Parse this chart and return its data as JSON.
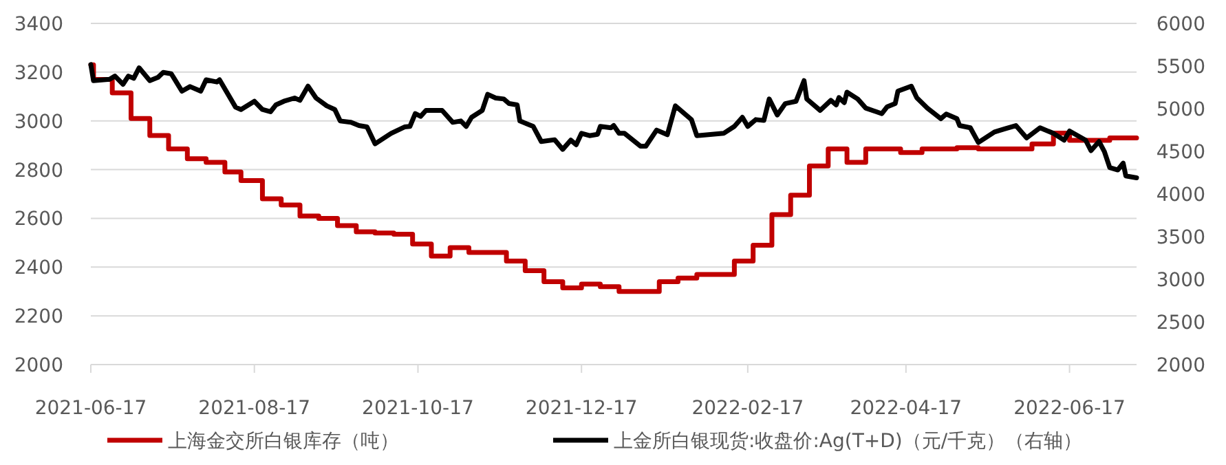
{
  "chart_data": {
    "type": "line",
    "xlim": [
      "2021-06-17",
      "2022-07-12"
    ],
    "xticks": [
      "2021-06-17",
      "2021-08-17",
      "2021-10-17",
      "2021-12-17",
      "2022-02-17",
      "2022-04-17",
      "2022-06-17"
    ],
    "ylim": [
      2000,
      3400
    ],
    "yticks": [
      2000,
      2200,
      2400,
      2600,
      2800,
      3000,
      3200,
      3400
    ],
    "y2lim": [
      2000,
      6000
    ],
    "y2ticks": [
      2000,
      2500,
      3000,
      3500,
      4000,
      4500,
      5000,
      5500,
      6000
    ],
    "grid": "y",
    "legend": "bottom",
    "marker": "none",
    "line_style": "solid",
    "series": [
      {
        "name": "上海金交所白银库存（吨）",
        "type": "step",
        "color": "#c00000",
        "x": [
          "2021-06-17",
          "2021-06-18",
          "2021-06-25",
          "2021-07-02",
          "2021-07-09",
          "2021-07-16",
          "2021-07-23",
          "2021-07-30",
          "2021-08-06",
          "2021-08-12",
          "2021-08-20",
          "2021-08-27",
          "2021-09-03",
          "2021-09-10",
          "2021-09-17",
          "2021-09-24",
          "2021-10-01",
          "2021-10-08",
          "2021-10-15",
          "2021-10-22",
          "2021-10-29",
          "2021-11-05",
          "2021-11-19",
          "2021-11-26",
          "2021-12-03",
          "2021-12-10",
          "2021-12-17",
          "2021-12-24",
          "2021-12-31",
          "2022-01-15",
          "2022-01-22",
          "2022-01-29",
          "2022-02-12",
          "2022-02-19",
          "2022-02-26",
          "2022-03-05",
          "2022-03-12",
          "2022-03-19",
          "2022-03-26",
          "2022-04-02",
          "2022-04-15",
          "2022-04-23",
          "2022-05-06",
          "2022-05-14",
          "2022-06-03",
          "2022-06-11",
          "2022-06-17",
          "2022-07-02",
          "2022-07-12"
        ],
        "values": [
          3230,
          3170,
          3115,
          3010,
          2940,
          2885,
          2845,
          2830,
          2790,
          2755,
          2680,
          2655,
          2610,
          2600,
          2570,
          2545,
          2540,
          2535,
          2495,
          2445,
          2480,
          2460,
          2425,
          2385,
          2340,
          2315,
          2330,
          2320,
          2300,
          2340,
          2355,
          2370,
          2425,
          2490,
          2615,
          2695,
          2815,
          2885,
          2830,
          2885,
          2870,
          2885,
          2890,
          2885,
          2905,
          2950,
          2920,
          2930,
          2930
        ]
      },
      {
        "name": "上金所白银现货:收盘价:Ag(T+D)（元/千克）（右轴）",
        "axis": "y2",
        "color": "#000000",
        "x": [
          "2021-06-17",
          "2021-06-18",
          "2021-06-24",
          "2021-06-26",
          "2021-06-29",
          "2021-07-01",
          "2021-07-03",
          "2021-07-05",
          "2021-07-09",
          "2021-07-12",
          "2021-07-14",
          "2021-07-17",
          "2021-07-21",
          "2021-07-24",
          "2021-07-28",
          "2021-07-30",
          "2021-08-03",
          "2021-08-04",
          "2021-08-10",
          "2021-08-12",
          "2021-08-17",
          "2021-08-20",
          "2021-08-23",
          "2021-08-25",
          "2021-08-28",
          "2021-09-01",
          "2021-09-03",
          "2021-09-06",
          "2021-09-09",
          "2021-09-13",
          "2021-09-16",
          "2021-09-18",
          "2021-09-22",
          "2021-09-25",
          "2021-09-28",
          "2021-10-01",
          "2021-10-07",
          "2021-10-12",
          "2021-10-14",
          "2021-10-16",
          "2021-10-18",
          "2021-10-20",
          "2021-10-26",
          "2021-10-30",
          "2021-11-02",
          "2021-11-04",
          "2021-11-06",
          "2021-11-10",
          "2021-11-12",
          "2021-11-15",
          "2021-11-18",
          "2021-11-20",
          "2021-11-23",
          "2021-11-24",
          "2021-11-29",
          "2021-12-02",
          "2021-12-07",
          "2021-12-10",
          "2021-12-13",
          "2021-12-15",
          "2021-12-17",
          "2021-12-20",
          "2021-12-23",
          "2021-12-24",
          "2021-12-28",
          "2021-12-29",
          "2021-12-31",
          "2022-01-02",
          "2022-01-08",
          "2022-01-10",
          "2022-01-14",
          "2022-01-18",
          "2022-01-21",
          "2022-01-27",
          "2022-01-29",
          "2022-02-08",
          "2022-02-12",
          "2022-02-15",
          "2022-02-17",
          "2022-02-20",
          "2022-02-23",
          "2022-02-25",
          "2022-02-28",
          "2022-03-03",
          "2022-03-07",
          "2022-03-10",
          "2022-03-11",
          "2022-03-16",
          "2022-03-20",
          "2022-03-22",
          "2022-03-23",
          "2022-03-25",
          "2022-03-26",
          "2022-03-30",
          "2022-04-02",
          "2022-04-08",
          "2022-04-10",
          "2022-04-13",
          "2022-04-14",
          "2022-04-19",
          "2022-04-21",
          "2022-04-25",
          "2022-04-30",
          "2022-05-02",
          "2022-05-06",
          "2022-05-07",
          "2022-05-11",
          "2022-05-14",
          "2022-05-20",
          "2022-05-24",
          "2022-05-28",
          "2022-06-01",
          "2022-06-06",
          "2022-06-11",
          "2022-06-15",
          "2022-06-17",
          "2022-06-23",
          "2022-06-25",
          "2022-06-28",
          "2022-06-30",
          "2022-07-02",
          "2022-07-05",
          "2022-07-07",
          "2022-07-08",
          "2022-07-12"
        ],
        "values": [
          5517,
          5329,
          5345,
          5382,
          5286,
          5382,
          5356,
          5479,
          5329,
          5366,
          5425,
          5409,
          5205,
          5259,
          5205,
          5339,
          5313,
          5339,
          5017,
          4990,
          5087,
          4990,
          4964,
          5044,
          5087,
          5125,
          5098,
          5264,
          5125,
          5033,
          4990,
          4856,
          4840,
          4802,
          4786,
          4588,
          4711,
          4786,
          4792,
          4942,
          4910,
          4980,
          4980,
          4840,
          4856,
          4792,
          4899,
          4980,
          5168,
          5125,
          5114,
          5060,
          5044,
          4856,
          4792,
          4615,
          4636,
          4523,
          4631,
          4577,
          4711,
          4684,
          4700,
          4792,
          4776,
          4802,
          4711,
          4711,
          4561,
          4561,
          4749,
          4695,
          5033,
          4872,
          4684,
          4711,
          4792,
          4899,
          4792,
          4872,
          4862,
          5114,
          4926,
          5060,
          5087,
          5329,
          5114,
          4980,
          5098,
          5044,
          5130,
          5071,
          5194,
          5114,
          5007,
          4942,
          5023,
          5060,
          5205,
          5264,
          5130,
          5007,
          4883,
          4937,
          4883,
          4802,
          4776,
          4604,
          4727,
          4765,
          4802,
          4657,
          4776,
          4711,
          4631,
          4738,
          4631,
          4508,
          4615,
          4497,
          4309,
          4282,
          4362,
          4212,
          4190
        ]
      }
    ]
  }
}
